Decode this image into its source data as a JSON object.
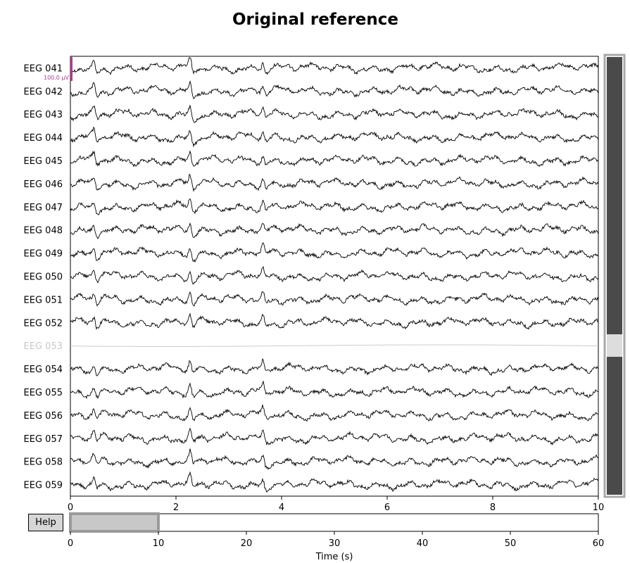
{
  "title": "Original reference",
  "scale_bar_label": "100.0 µV",
  "help_button_label": "Help",
  "colors": {
    "trace": "#000000",
    "bad_channel": "#c8c8c8",
    "scale_bar": "#ab3a8e",
    "scrollbar_bg": "#4a4a4a",
    "scrollbar_thumb": "#dddddd",
    "selector_fill": "#c8c8c8",
    "selector_border": "#9a9a9a"
  },
  "chart_data": [
    {
      "type": "line",
      "title": "Original reference",
      "xlabel": "",
      "ylabel": "",
      "xlim": [
        0,
        10
      ],
      "xticks": [
        0,
        2,
        4,
        6,
        8,
        10
      ],
      "channels": [
        "EEG 041",
        "EEG 042",
        "EEG 043",
        "EEG 044",
        "EEG 045",
        "EEG 046",
        "EEG 047",
        "EEG 048",
        "EEG 049",
        "EEG 050",
        "EEG 051",
        "EEG 052",
        "EEG 053",
        "EEG 054",
        "EEG 055",
        "EEG 056",
        "EEG 057",
        "EEG 058",
        "EEG 059"
      ],
      "bad_channels": [
        "EEG 053"
      ],
      "spike_times_s": [
        0.45,
        2.27,
        3.65
      ],
      "grid": false,
      "legend": "none"
    },
    {
      "type": "bar",
      "xlabel": "Time (s)",
      "xlim": [
        0,
        60
      ],
      "xticks": [
        0,
        10,
        20,
        30,
        40,
        50,
        60
      ],
      "view_window_s": [
        0,
        10
      ]
    }
  ]
}
